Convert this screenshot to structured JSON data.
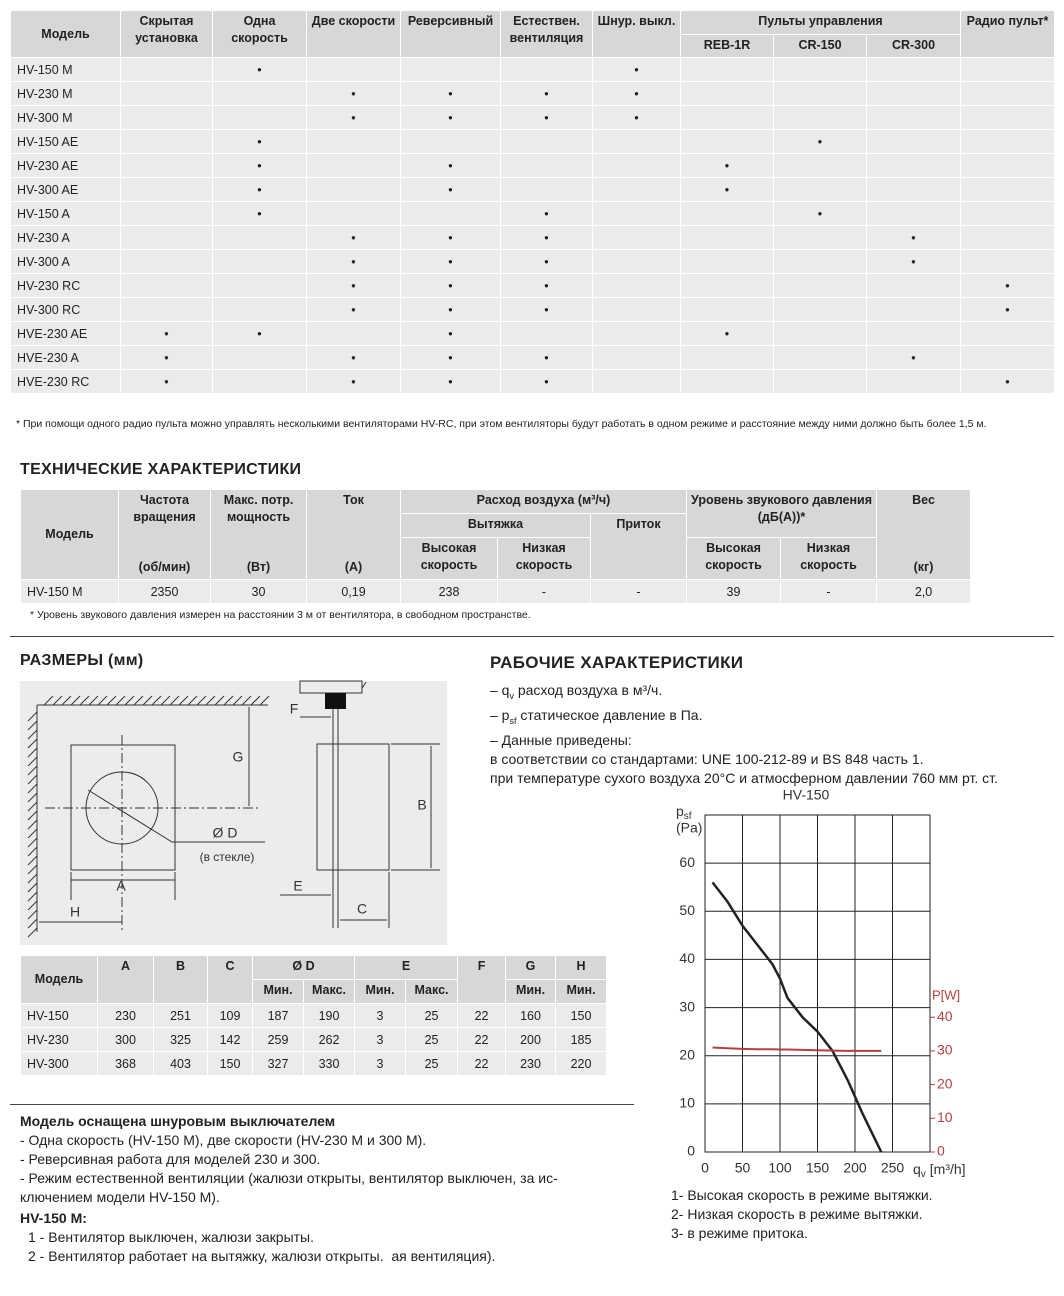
{
  "models_table": {
    "header": {
      "model": "Модель",
      "columns": [
        "Скрытая установка",
        "Одна скорость",
        "Две скорости",
        "Реверсивный",
        "Естествен. вентиляция",
        "Шнур. выкл."
      ],
      "remotes_group": "Пульты управления",
      "remotes": [
        "REB-1R",
        "CR-150",
        "CR-300"
      ],
      "radio": "Радио пульт*"
    },
    "rows": [
      [
        "HV-150 M",
        null,
        "•",
        null,
        null,
        null,
        "•",
        null,
        null,
        null,
        null
      ],
      [
        "HV-230 M",
        null,
        null,
        "•",
        "•",
        "•",
        "•",
        null,
        null,
        null,
        null
      ],
      [
        "HV-300 M",
        null,
        null,
        "•",
        "•",
        "•",
        "•",
        null,
        null,
        null,
        null
      ],
      [
        "HV-150 AE",
        null,
        "•",
        null,
        null,
        null,
        null,
        null,
        "•",
        null,
        null
      ],
      [
        "HV-230 AE",
        null,
        "•",
        null,
        "•",
        null,
        null,
        "•",
        null,
        null,
        null
      ],
      [
        "HV-300 AE",
        null,
        "•",
        null,
        "•",
        null,
        null,
        "•",
        null,
        null,
        null
      ],
      [
        "HV-150 A",
        null,
        "•",
        null,
        null,
        "•",
        null,
        null,
        "•",
        null,
        null
      ],
      [
        "HV-230 A",
        null,
        null,
        "•",
        "•",
        "•",
        null,
        null,
        null,
        "•",
        null
      ],
      [
        "HV-300 A",
        null,
        null,
        "•",
        "•",
        "•",
        null,
        null,
        null,
        "•",
        null
      ],
      [
        "HV-230 RC",
        null,
        null,
        "•",
        "•",
        "•",
        null,
        null,
        null,
        null,
        "•"
      ],
      [
        "HV-300 RC",
        null,
        null,
        "•",
        "•",
        "•",
        null,
        null,
        null,
        null,
        "•"
      ],
      [
        "HVE-230 AE",
        "•",
        "•",
        null,
        "•",
        null,
        null,
        "•",
        null,
        null,
        null
      ],
      [
        "HVE-230 A",
        "•",
        null,
        "•",
        "•",
        "•",
        null,
        null,
        null,
        "•",
        null
      ],
      [
        "HVE-230 RC",
        "•",
        null,
        "•",
        "•",
        "•",
        null,
        null,
        null,
        null,
        "•"
      ]
    ],
    "footnote": "* При помощи одного радио пульта можно управлять несколькими вентиляторами HV-RC, при этом вентиляторы будут работать в одном режиме и расстояние между ними должно быть более 1,5 м."
  },
  "tech": {
    "title": "ТЕХНИЧЕСКИЕ ХАРАКТЕРИСТИКИ",
    "header": {
      "model": "Модель",
      "speed": {
        "name": "Частота вращения",
        "unit": "(об/мин)"
      },
      "power": {
        "name": "Макс. потр. мощность",
        "unit": "(Вт)"
      },
      "current": {
        "name": "Ток",
        "unit": "(А)"
      },
      "flow": "Расход воздуха (м³/ч)",
      "exhaust": "Вытяжка",
      "supply": "Приток",
      "sound": "Уровень звукового давления (дБ(А))*",
      "weight": {
        "name": "Вес",
        "unit": "(кг)"
      },
      "high": "Высокая скорость",
      "low": "Низкая скорость"
    },
    "rows": [
      [
        "HV-150 M",
        2350,
        30,
        "0,19",
        238,
        "-",
        "-",
        39,
        "-",
        "2,0"
      ]
    ],
    "footnote": "* Уровень звукового давления измерен на расстоянии 3 м от вентилятора, в свободном пространстве."
  },
  "dims": {
    "title": "РАЗМЕРЫ (мм)",
    "diagram": {
      "F": "F",
      "G": "G",
      "B": "B",
      "D": "Ø D",
      "glass": "(в стекле)",
      "A": "A",
      "H": "H",
      "E": "E",
      "C": "C"
    },
    "header": {
      "model": "Модель",
      "A": "A",
      "B": "B",
      "C": "C",
      "D": "Ø D",
      "E": "E",
      "F": "F",
      "G": "G",
      "H": "H",
      "sub": [
        "Мин.",
        "Макс.",
        "Мин.",
        "Макс.",
        "Мин.",
        "Мин."
      ]
    },
    "rows": [
      [
        "HV-150",
        230,
        251,
        109,
        187,
        190,
        3,
        25,
        22,
        160,
        150
      ],
      [
        "HV-230",
        300,
        325,
        142,
        259,
        262,
        3,
        25,
        22,
        200,
        185
      ],
      [
        "HV-300",
        368,
        403,
        150,
        327,
        330,
        3,
        25,
        22,
        230,
        220
      ]
    ]
  },
  "notes": {
    "title": "Модель оснащена шнуровым выключателем",
    "lines": [
      "- Одна скорость (HV-150 M), две скорости (HV-230 M и 300 M).",
      "- Реверсивная работа для моделей 230 и 300.",
      "- Режим естественной вентиляции (жалюзи открыты, вентилятор выключен, за ис-",
      "ключением модели HV-150 M)."
    ],
    "subtitle": "HV-150 M:",
    "items": [
      "1 - Вентилятор выключен, жалюзи закрыты.",
      "2 - Вентилятор работает на вытяжку, жалюзи открыты.  ая вентиляция)."
    ]
  },
  "perf": {
    "title": "РАБОЧИЕ ХАРАКТЕРИСТИКИ",
    "q": {
      "a": "– q",
      "sub": "v",
      "b": " расход воздуха в м³/ч."
    },
    "p": {
      "a": "– p",
      "sub": "sf",
      "b": " статическое давление в Па."
    },
    "lines": [
      "– Данные приведены:",
      "в соответствии со стандартами: UNE 100-212-89 и BS 848 часть 1.",
      "при температуре сухого воздуха 20°С и атмосферном давлении 760 мм рт. ст."
    ]
  },
  "chart_data": {
    "type": "line",
    "title": "HV-150",
    "y_label": {
      "main": "p",
      "sub": "sf",
      "unit": "(Pa)"
    },
    "y2_label": "P[W]",
    "x_label": {
      "main": "q",
      "sub": "v",
      "unit": "[m³/h]"
    },
    "x": [
      10,
      30,
      50,
      70,
      90,
      100,
      110,
      130,
      150,
      170,
      190,
      210,
      235
    ],
    "series": [
      {
        "color": "#222222",
        "values": [
          56,
          52,
          47,
          43,
          39,
          36,
          32,
          28,
          25,
          21,
          15,
          8,
          0
        ]
      },
      {
        "color": "#b5403e",
        "axis": "y2",
        "values": [
          31,
          30.8,
          30.6,
          30.5,
          30.5,
          30.4,
          30.4,
          30.3,
          30.2,
          30.1,
          30,
          30,
          30
        ]
      }
    ],
    "xlim": [
      0,
      300
    ],
    "xticks": [
      0,
      50,
      100,
      150,
      200,
      250
    ],
    "ylim": [
      0,
      70
    ],
    "yticks": [
      0,
      10,
      20,
      30,
      40,
      50,
      60
    ],
    "y2lim": [
      0,
      100
    ],
    "y2ticks": [
      0,
      10,
      20,
      30,
      40
    ],
    "grid": true,
    "notes": [
      "1- Высокая скорость в режиме вытяжки.",
      "2- Низкая скорость в режиме вытяжки.",
      "3- в режиме притока."
    ]
  }
}
